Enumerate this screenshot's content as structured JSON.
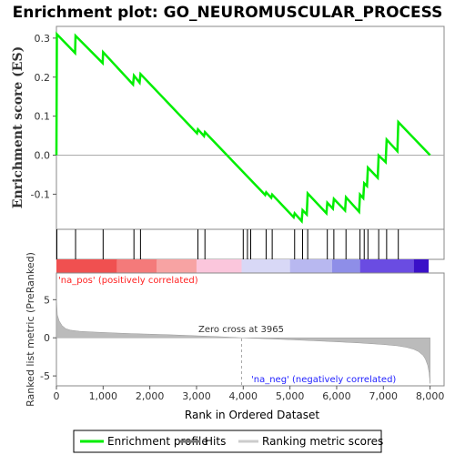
{
  "title": "Enrichment plot: GO_NEUROMUSCULAR_PROCESS",
  "colors": {
    "enrichment_line": "#00ee00",
    "hit": "#000000",
    "ranking_fill": "#bbbbbb",
    "pos_label": "#ff2222",
    "neg_label": "#2222ff",
    "zero_line": "#aaaaaa"
  },
  "chart_data": {
    "type": "line",
    "es_panel": {
      "ylabel": "Enrichment score (ES)",
      "ylim": [
        -0.19,
        0.33
      ],
      "yticks": [
        "-0.1",
        "0.0",
        "0.1",
        "0.2",
        "0.3"
      ],
      "ytick_values": [
        -0.1,
        0.0,
        0.1,
        0.2,
        0.3
      ],
      "series": [
        {
          "name": "Enrichment profile",
          "x": [
            0,
            10,
            400,
            410,
            990,
            1000,
            1640,
            1660,
            1780,
            1800,
            3010,
            3030,
            3160,
            3180,
            4470,
            4490,
            4600,
            4620,
            5080,
            5100,
            5250,
            5270,
            5360,
            5380,
            5780,
            5800,
            5920,
            5940,
            6180,
            6200,
            6480,
            6500,
            6570,
            6590,
            6650,
            6670,
            6880,
            6900,
            7050,
            7070,
            7300,
            7320,
            8000
          ],
          "y": [
            0.0,
            0.31,
            0.262,
            0.306,
            0.236,
            0.264,
            0.181,
            0.204,
            0.186,
            0.208,
            0.056,
            0.066,
            0.049,
            0.059,
            -0.102,
            -0.095,
            -0.109,
            -0.101,
            -0.159,
            -0.149,
            -0.169,
            -0.141,
            -0.152,
            -0.098,
            -0.149,
            -0.122,
            -0.137,
            -0.112,
            -0.142,
            -0.108,
            -0.145,
            -0.101,
            -0.11,
            -0.072,
            -0.079,
            -0.032,
            -0.058,
            -0.001,
            -0.018,
            0.04,
            0.01,
            0.085,
            0.0
          ]
        }
      ]
    },
    "hits": {
      "name": "Hits",
      "x": [
        10,
        410,
        1000,
        1660,
        1800,
        3030,
        3180,
        4000,
        4090,
        4160,
        4490,
        4620,
        5100,
        5270,
        5380,
        5800,
        5940,
        6200,
        6500,
        6590,
        6670,
        6900,
        7070,
        7320
      ]
    },
    "rank_panel": {
      "ylabel": "Ranked list metric (PreRanked)",
      "ylim": [
        -6.3,
        8.5
      ],
      "yticks": [
        "-5",
        "0",
        "5"
      ],
      "ytick_values": [
        -5,
        0,
        5
      ],
      "series_name": "Ranking metric scores",
      "x": [
        0,
        20,
        60,
        120,
        200,
        300,
        500,
        800,
        1200,
        1600,
        2000,
        2500,
        3000,
        3500,
        3965,
        4500,
        5000,
        5500,
        6000,
        6500,
        7000,
        7300,
        7500,
        7650,
        7750,
        7850,
        7900,
        7950,
        7980,
        8000
      ],
      "y": [
        5.3,
        3.0,
        2.2,
        1.6,
        1.2,
        1.0,
        0.85,
        0.75,
        0.65,
        0.55,
        0.48,
        0.38,
        0.27,
        0.14,
        0.0,
        -0.12,
        -0.25,
        -0.38,
        -0.52,
        -0.68,
        -0.88,
        -1.05,
        -1.25,
        -1.5,
        -1.8,
        -2.3,
        -2.8,
        -3.6,
        -4.6,
        -6.0
      ]
    },
    "xaxis": {
      "label": "Rank in Ordered Dataset",
      "xlim": [
        0,
        8300
      ],
      "ticks": [
        "0",
        "1,000",
        "2,000",
        "3,000",
        "4,000",
        "5,000",
        "6,000",
        "7,000",
        "8,000"
      ],
      "tick_values": [
        0,
        1000,
        2000,
        3000,
        4000,
        5000,
        6000,
        7000,
        8000
      ]
    },
    "annotations": {
      "zero_cross_label": "Zero cross at 3965",
      "zero_cross": 3965,
      "pos_label": "'na_pos' (positively correlated)",
      "neg_label": "'na_neg' (negatively correlated)"
    },
    "legend": {
      "placement": "bottom",
      "entries": [
        "Enrichment profile",
        "Hits",
        "Ranking metric scores"
      ]
    }
  }
}
